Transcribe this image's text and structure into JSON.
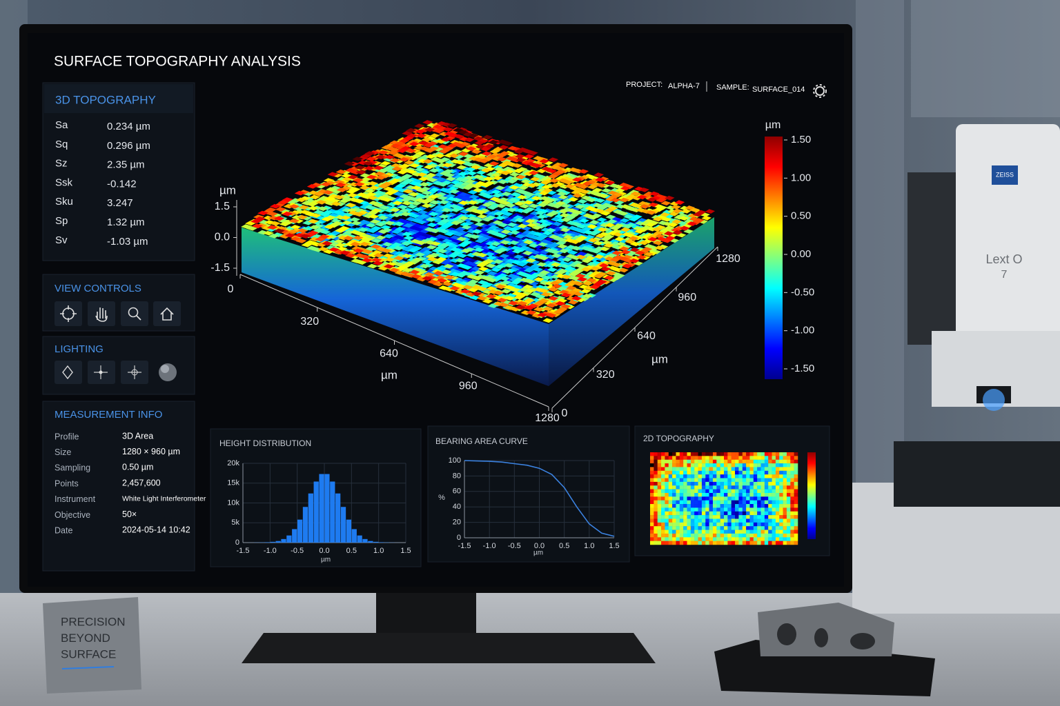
{
  "header": {
    "title": "SURFACE TOPOGRAPHY ANALYSIS",
    "project_label": "PROJECT:",
    "project": "ALPHA-7",
    "sample_label": "SAMPLE:",
    "sample": "SURFACE_014"
  },
  "parameters": {
    "title": "3D TOPOGRAPHY",
    "rows": [
      [
        "Sa",
        "0.234 µm"
      ],
      [
        "Sq",
        "0.296 µm"
      ],
      [
        "Sz",
        "2.35 µm"
      ],
      [
        "Ssk",
        "-0.142"
      ],
      [
        "Sku",
        "3.247"
      ],
      [
        "Sp",
        "1.32 µm"
      ],
      [
        "Sv",
        "-1.03 µm"
      ]
    ]
  },
  "view_controls": {
    "title": "VIEW CONTROLS"
  },
  "lighting": {
    "title": "LIGHTING"
  },
  "measurement": {
    "title": "MEASUREMENT INFO",
    "rows": [
      [
        "Profile",
        "3D Area"
      ],
      [
        "Size",
        "1280 × 960 µm"
      ],
      [
        "Sampling",
        "0.50 µm"
      ],
      [
        "Points",
        "2,457,600"
      ],
      [
        "Instrument",
        "White Light Interferometer"
      ],
      [
        "Objective",
        "50×"
      ],
      [
        "Date",
        "2024-05-14  10:42"
      ]
    ]
  },
  "topography_3d": {
    "z_label": "µm",
    "zlim": [
      -1.5,
      1.5
    ],
    "zticks": [
      1.5,
      {
        "value": 0,
        "label": "0.0"
      },
      -1.5
    ],
    "x_label": "µm",
    "xlim": [
      0,
      1280
    ],
    "xticks": [
      0,
      320,
      640,
      960,
      1280
    ],
    "y_label": "µm",
    "ylim": [
      0,
      1280
    ],
    "yticks": [
      0,
      320,
      640,
      960,
      1280
    ]
  },
  "colorbar": {
    "unit": "µm",
    "lim": [
      -1.5,
      1.5
    ],
    "ticks": [
      {
        "value": 1.5,
        "label": "1.50"
      },
      {
        "value": 1,
        "label": "1.00"
      },
      {
        "value": 0.5,
        "label": "0.50"
      },
      {
        "value": 0,
        "label": "0.00"
      },
      {
        "value": -0.5,
        "label": "-0.50"
      },
      {
        "value": -1,
        "label": "-1.00"
      },
      {
        "value": -1.5,
        "label": "-1.50"
      }
    ]
  },
  "chart_data": [
    {
      "type": "histogram",
      "title": "HEIGHT DISTRIBUTION",
      "x_label": "µm",
      "color": "#1e7bf0",
      "bins": [
        -1.5,
        -1.4,
        -1.3,
        -1.2,
        -1.1,
        -1.0,
        -0.9,
        -0.8,
        -0.7,
        -0.6,
        -0.5,
        -0.4,
        -0.3,
        -0.2,
        -0.1,
        0,
        0.1,
        0.2,
        0.3,
        0.4,
        0.5,
        0.6,
        0.7,
        0.8,
        0.9,
        1.0,
        1.1,
        1.2,
        1.3,
        1.4,
        1.5
      ],
      "values": [
        0,
        10,
        30,
        60,
        100,
        200,
        400,
        900,
        1800,
        3400,
        5800,
        9000,
        12400,
        15400,
        17300,
        17300,
        15400,
        12400,
        9000,
        5800,
        3400,
        1800,
        900,
        400,
        200,
        100,
        60,
        30,
        10,
        0
      ],
      "xlim": [
        -1.5,
        1.5
      ],
      "xticks": [
        -1.5,
        {
          "value": -1,
          "label": "-1.0"
        },
        -0.5,
        {
          "value": 0,
          "label": "0.0"
        },
        0.5,
        {
          "value": 1,
          "label": "1.0"
        },
        1.5
      ],
      "ylim": [
        0,
        20000
      ],
      "yticks": [
        0,
        {
          "value": 5000,
          "label": "5k"
        },
        {
          "value": 10000,
          "label": "10k"
        },
        {
          "value": 15000,
          "label": "15k"
        },
        {
          "value": 20000,
          "label": "20k"
        }
      ],
      "grid": true
    },
    {
      "type": "line",
      "title": "BEARING AREA CURVE",
      "x_label": "µm",
      "y_label": "%",
      "color": "#3b82e0",
      "x": [
        -1.5,
        -1.25,
        -1,
        -0.75,
        -0.5,
        -0.25,
        0,
        0.25,
        0.5,
        0.75,
        1,
        1.25,
        1.5
      ],
      "values": [
        100,
        99.5,
        99,
        98,
        96,
        94,
        90,
        82,
        65,
        40,
        18,
        6,
        2
      ],
      "xlim": [
        -1.5,
        1.5
      ],
      "xticks": [
        -1.5,
        {
          "value": -1,
          "label": "-1.0"
        },
        -0.5,
        {
          "value": 0,
          "label": "0.0"
        },
        0.5,
        {
          "value": 1,
          "label": "1.0"
        },
        1.5
      ],
      "ylim": [
        0,
        100
      ],
      "yticks": [
        0,
        20,
        40,
        60,
        80,
        100
      ],
      "grid": true
    }
  ],
  "topography_2d": {
    "title": "2D TOPOGRAPHY"
  },
  "sign": {
    "lines": [
      "PRECISION",
      "BEYOND",
      "SURFACE"
    ]
  },
  "device": {
    "brand": "ZEISS",
    "model": "Lext O",
    "model_line2": "7"
  }
}
